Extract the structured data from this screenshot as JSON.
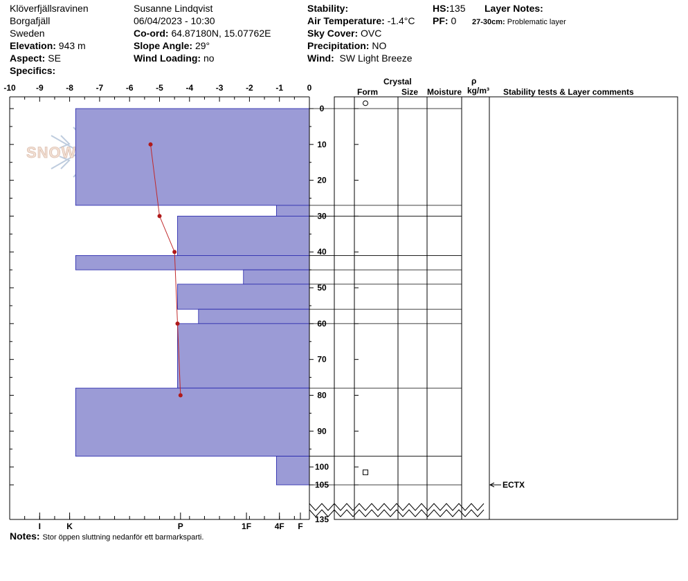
{
  "header": {
    "location": "Klöverfjällsravinen",
    "region": "Borgafjäll",
    "country": "Sweden",
    "elevation_label": "Elevation:",
    "elevation_value": "943 m",
    "aspect_label": "Aspect:",
    "aspect_value": "SE",
    "specifics_label": "Specifics:",
    "observer": "Susanne Lindqvist",
    "datetime": "06/04/2023 - 10:30",
    "coord_label": "Co-ord:",
    "coord_value": "64.87180N, 15.07762E",
    "slope_label": "Slope Angle:",
    "slope_value": "29°",
    "wind_loading_label": "Wind Loading:",
    "wind_loading_value": "no",
    "stability_label": "Stability:",
    "air_temp_label": "Air Temperature:",
    "air_temp_value": "-1.4°C",
    "sky_label": "Sky Cover:",
    "sky_value": "OVC",
    "precip_label": "Precipitation:",
    "precip_value": "NO",
    "wind_label": "Wind:",
    "wind_value": "SW Light Breeze",
    "hs_label": "HS:",
    "hs_value": "135",
    "pf_label": "PF:",
    "pf_value": "0",
    "layer_notes_label": "Layer Notes:",
    "layer_note_range": "27-30cm:",
    "layer_note_text": "Problematic layer"
  },
  "columns": {
    "crystal": "Crystal",
    "form": "Form",
    "size": "Size",
    "moisture": "Moisture",
    "rho": "ρ",
    "density_unit": "kg/m³",
    "stability_comments": "Stability tests & Layer comments"
  },
  "notes_label": "Notes:",
  "notes_text": "Stor öppen sluttning nedanför ett barmarksparti.",
  "watermark": "SNOWPILOT",
  "chart_data": {
    "type": "snow-profile",
    "temperature_axis": {
      "ticks": [
        -10,
        -9,
        -8,
        -7,
        -6,
        -5,
        -4,
        -3,
        -2,
        -1,
        0
      ],
      "range": [
        -10,
        0
      ]
    },
    "hardness_axis": {
      "labels": [
        "I",
        "K",
        "P",
        "1F",
        "4F",
        "F"
      ],
      "values": [
        -9,
        -8,
        -4.3,
        -2.1,
        -1,
        -0.3
      ]
    },
    "depth_axis": {
      "ticks": [
        0,
        10,
        20,
        30,
        40,
        50,
        60,
        70,
        80,
        90,
        100,
        105
      ],
      "bottom_label": "135",
      "range": [
        0,
        105
      ]
    },
    "layers": [
      {
        "top": 0,
        "bottom": 27,
        "hardness": -7.8
      },
      {
        "top": 27,
        "bottom": 30,
        "hardness": -1.1
      },
      {
        "top": 30,
        "bottom": 41,
        "hardness": -4.4
      },
      {
        "top": 41,
        "bottom": 45,
        "hardness": -7.8
      },
      {
        "top": 45,
        "bottom": 49,
        "hardness": -2.2
      },
      {
        "top": 49,
        "bottom": 56,
        "hardness": -4.4
      },
      {
        "top": 56,
        "bottom": 60,
        "hardness": -3.7
      },
      {
        "top": 60,
        "bottom": 78,
        "hardness": -4.4
      },
      {
        "top": 78,
        "bottom": 97,
        "hardness": -7.8
      },
      {
        "top": 97,
        "bottom": 105,
        "hardness": -1.1
      }
    ],
    "temperature_profile": [
      {
        "depth": 10,
        "temp": -5.3
      },
      {
        "depth": 30,
        "temp": -5.0
      },
      {
        "depth": 40,
        "temp": -4.5
      },
      {
        "depth": 60,
        "temp": -4.4
      },
      {
        "depth": 80,
        "temp": -4.3
      }
    ],
    "crystal_forms": [
      {
        "depth": -1.5,
        "symbol": "circle"
      },
      {
        "depth": 101.5,
        "symbol": "square"
      }
    ],
    "stability_tests": [
      {
        "depth": 105,
        "label": "ECTX"
      }
    ]
  }
}
